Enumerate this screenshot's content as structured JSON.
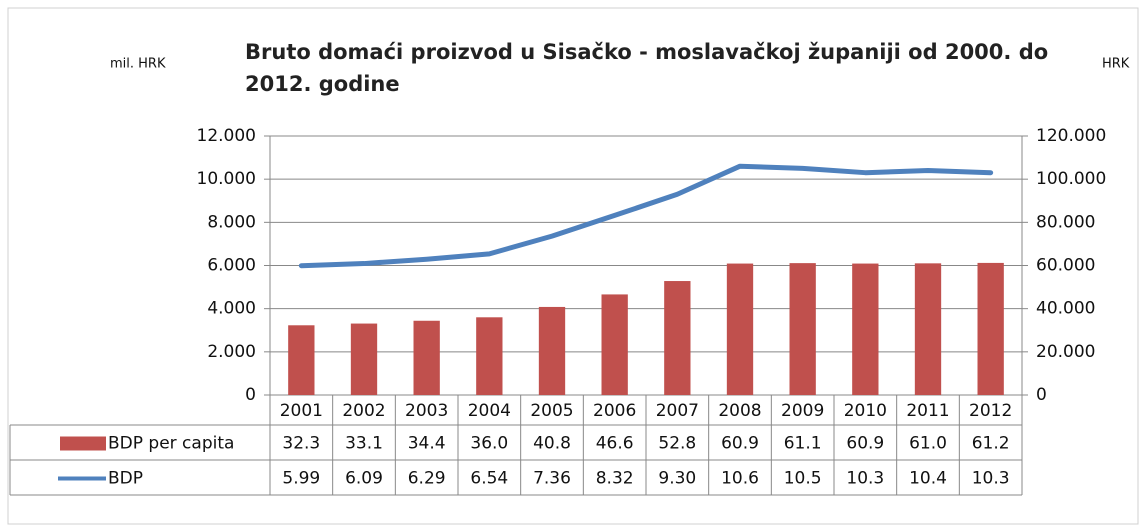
{
  "chart_data": {
    "type": "bar-line",
    "title": "Bruto domaći proizvod u Sisačko - moslavačkoj županiji od 2000. do 2012. godine",
    "y_label": "mil. HRK",
    "y2_label": "HRK",
    "categories": [
      "2001",
      "2002",
      "2003",
      "2004",
      "2005",
      "2006",
      "2007",
      "2008",
      "2009",
      "2010",
      "2011",
      "2012"
    ],
    "series": [
      {
        "name": "BDP per capita",
        "type": "bar",
        "axis": "y2",
        "color": "#c0504d",
        "values": [
          32300,
          33100,
          34400,
          36000,
          40800,
          46600,
          52800,
          60900,
          61100,
          60900,
          61000,
          61200
        ],
        "value_labels": [
          "32.3",
          "33.1",
          "34.4",
          "36.0",
          "40.8",
          "46.6",
          "52.8",
          "60.9",
          "61.1",
          "60.9",
          "61.0",
          "61.2"
        ]
      },
      {
        "name": "BDP",
        "type": "line",
        "axis": "y",
        "color": "#4f81bd",
        "values": [
          5990,
          6090,
          6290,
          6540,
          7360,
          8320,
          9300,
          10600,
          10500,
          10300,
          10400,
          10300
        ],
        "value_labels": [
          "5.99",
          "6.09",
          "6.29",
          "6.54",
          "7.36",
          "8.32",
          "9.30",
          "10.6",
          "10.5",
          "10.3",
          "10.4",
          "10.3"
        ]
      }
    ],
    "ylim": [
      0,
      12000
    ],
    "yticks": [
      0,
      {
        "value": 2000,
        "label": "2.000"
      },
      {
        "value": 4000,
        "label": "4.000"
      },
      {
        "value": 6000,
        "label": "6.000"
      },
      {
        "value": 8000,
        "label": "8.000"
      },
      {
        "value": 10000,
        "label": "10.000"
      },
      {
        "value": 12000,
        "label": "12.000"
      }
    ],
    "y2lim": [
      0,
      120000
    ],
    "y2ticks": [
      0,
      {
        "value": 20000,
        "label": "20.000"
      },
      {
        "value": 40000,
        "label": "40.000"
      },
      {
        "value": 60000,
        "label": "60.000"
      },
      {
        "value": 80000,
        "label": "80.000"
      },
      {
        "value": 100000,
        "label": "100.000"
      },
      {
        "value": 120000,
        "label": "120.000"
      }
    ],
    "grid": true
  }
}
